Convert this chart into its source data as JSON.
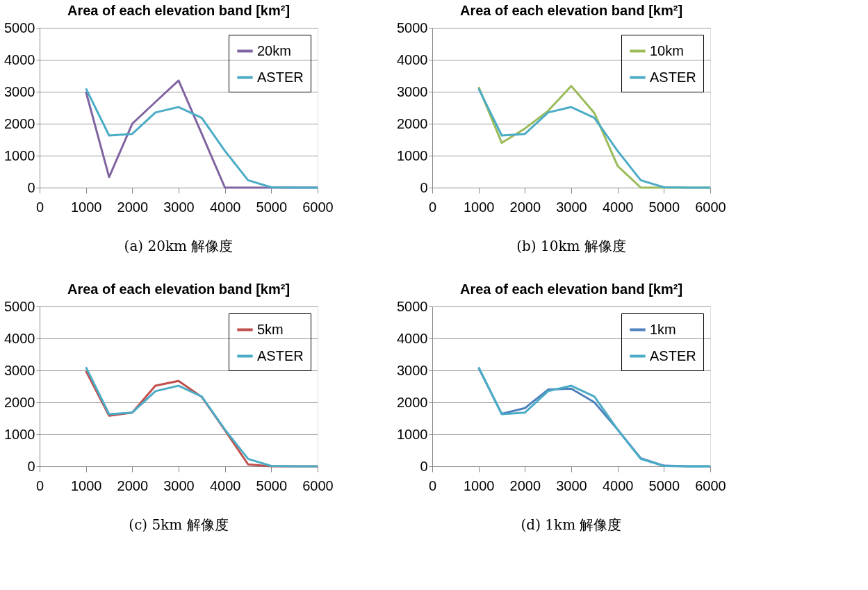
{
  "chart_data": [
    {
      "type": "line",
      "title": "Area of each elevation band [km²]",
      "x": [
        1000,
        1500,
        2000,
        2500,
        3000,
        3500,
        4000,
        4500,
        5000,
        5500,
        6000
      ],
      "xlim": [
        0,
        6000
      ],
      "xticks": [
        0,
        1000,
        2000,
        3000,
        4000,
        5000,
        6000
      ],
      "ylim": [
        0,
        5000
      ],
      "yticks": [
        0,
        1000,
        2000,
        3000,
        4000,
        5000
      ],
      "grid": "y",
      "legend": "top right",
      "annotations": [
        "(a) 20km 解像度"
      ],
      "series": [
        {
          "name": "20km",
          "color": "#8064a2",
          "values": [
            3000,
            330,
            2000,
            2680,
            3350,
            1680,
            0,
            0,
            0,
            0,
            0
          ]
        },
        {
          "name": "ASTER",
          "color": "#4bacc6",
          "values": [
            3100,
            1630,
            1680,
            2350,
            2520,
            2180,
            1150,
            230,
            10,
            0,
            0
          ]
        }
      ]
    },
    {
      "type": "line",
      "title": "Area of each elevation band [km²]",
      "x": [
        1000,
        1500,
        2000,
        2500,
        3000,
        3500,
        4000,
        4500,
        5000,
        5500,
        6000
      ],
      "xlim": [
        0,
        6000
      ],
      "xticks": [
        0,
        1000,
        2000,
        3000,
        4000,
        5000,
        6000
      ],
      "ylim": [
        0,
        5000
      ],
      "yticks": [
        0,
        1000,
        2000,
        3000,
        4000,
        5000
      ],
      "grid": "y",
      "legend": "top right",
      "annotations": [
        "(b) 10km 解像度"
      ],
      "series": [
        {
          "name": "10km",
          "color": "#9bbb59",
          "values": [
            3150,
            1400,
            1850,
            2400,
            3180,
            2330,
            680,
            0,
            0,
            0,
            0
          ]
        },
        {
          "name": "ASTER",
          "color": "#4bacc6",
          "values": [
            3100,
            1630,
            1680,
            2350,
            2520,
            2180,
            1150,
            230,
            10,
            0,
            0
          ]
        }
      ]
    },
    {
      "type": "line",
      "title": "Area of each elevation band [km²]",
      "x": [
        1000,
        1500,
        2000,
        2500,
        3000,
        3500,
        4000,
        4500,
        5000,
        5500,
        6000
      ],
      "xlim": [
        0,
        6000
      ],
      "xticks": [
        0,
        1000,
        2000,
        3000,
        4000,
        5000,
        6000
      ],
      "ylim": [
        0,
        5000
      ],
      "yticks": [
        0,
        1000,
        2000,
        3000,
        4000,
        5000
      ],
      "grid": "y",
      "legend": "top right",
      "annotations": [
        "(c) 5km 解像度"
      ],
      "series": [
        {
          "name": "5km",
          "color": "#c0504d",
          "values": [
            2980,
            1580,
            1680,
            2520,
            2670,
            2170,
            1130,
            60,
            0,
            0,
            0
          ]
        },
        {
          "name": "ASTER",
          "color": "#4bacc6",
          "values": [
            3100,
            1630,
            1680,
            2350,
            2520,
            2180,
            1150,
            230,
            10,
            0,
            0
          ]
        }
      ]
    },
    {
      "type": "line",
      "title": "Area of each elevation band [km²]",
      "x": [
        1000,
        1500,
        2000,
        2500,
        3000,
        3500,
        4000,
        4500,
        5000,
        5500,
        6000
      ],
      "xlim": [
        0,
        6000
      ],
      "xticks": [
        0,
        1000,
        2000,
        3000,
        4000,
        5000,
        6000
      ],
      "ylim": [
        0,
        5000
      ],
      "yticks": [
        0,
        1000,
        2000,
        3000,
        4000,
        5000
      ],
      "grid": "y",
      "legend": "top right",
      "annotations": [
        "(d) 1km 解像度"
      ],
      "series": [
        {
          "name": "1km",
          "color": "#4f81bd",
          "values": [
            3080,
            1640,
            1820,
            2400,
            2430,
            2000,
            1150,
            250,
            20,
            0,
            0
          ]
        },
        {
          "name": "ASTER",
          "color": "#4bacc6",
          "values": [
            3100,
            1630,
            1680,
            2350,
            2520,
            2180,
            1150,
            230,
            10,
            0,
            0
          ]
        }
      ]
    }
  ]
}
